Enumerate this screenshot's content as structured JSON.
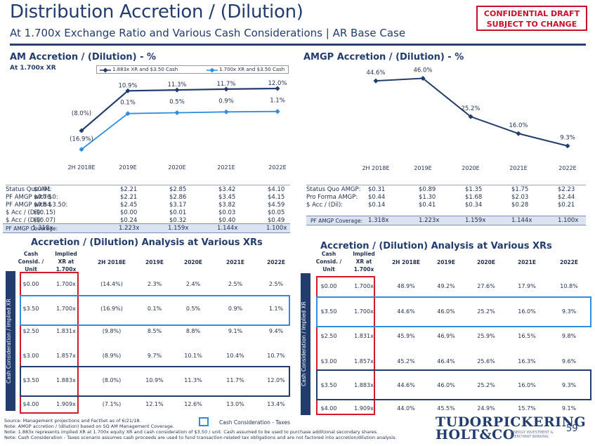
{
  "header": {
    "title": "Distribution Accretion / (Dilution)",
    "subtitle": "At 1.700x Exchange Ratio and Various Cash Considerations | AR Base Case",
    "confidential_line1": "CONFIDENTIAL DRAFT",
    "confidential_line2": "SUBJECT TO CHANGE"
  },
  "am_chart": {
    "title": "AM Accretion / (Dilution) - %",
    "subtitle": "At 1.700x XR",
    "legend": [
      "1.883x XR and $3.50 Cash",
      "1.700x XR and $3.50 Cash"
    ],
    "x_labels": [
      "2H 2018E",
      "2019E",
      "2020E",
      "2021E",
      "2022E"
    ],
    "series1_labels": [
      "(8.0%)",
      "10.9%",
      "11.3%",
      "11.7%",
      "12.0%"
    ],
    "series2_labels": [
      "(16.9%)",
      "0.1%",
      "0.5%",
      "0.9%",
      "1.1%"
    ]
  },
  "am_stats": {
    "labels": [
      "Status Quo AM:",
      "PF AMGP with $0:",
      "PF AMGP with $3.50:",
      "$ Acc / (Dil):",
      "$ Acc / (Dil):"
    ],
    "rows": [
      [
        "$0.91",
        "$2.21",
        "$2.85",
        "$3.42",
        "$4.10"
      ],
      [
        "$0.76",
        "$2.21",
        "$2.86",
        "$3.45",
        "$4.15"
      ],
      [
        "$0.84",
        "$2.45",
        "$3.17",
        "$3.82",
        "$4.59"
      ],
      [
        "($0.15)",
        "$0.00",
        "$0.01",
        "$0.03",
        "$0.05"
      ],
      [
        "($0.07)",
        "$0.24",
        "$0.32",
        "$0.40",
        "$0.49"
      ]
    ],
    "coverage_label": "PF AMGP Coverage:",
    "coverage": [
      "1.318x",
      "1.223x",
      "1.159x",
      "1.144x",
      "1.100x"
    ]
  },
  "amgp_chart": {
    "title": "AMGP Accretion / (Dilution) - %",
    "x_labels": [
      "2H 2018E",
      "2019E",
      "2020E",
      "2021E",
      "2022E"
    ],
    "labels": [
      "44.6%",
      "46.0%",
      "25.2%",
      "16.0%",
      "9.3%"
    ]
  },
  "amgp_stats": {
    "labels": [
      "Status Quo AMGP:",
      "Pro Forma AMGP:",
      "$ Acc / (Dil):"
    ],
    "rows": [
      [
        "$0.31",
        "$0.89",
        "$1.35",
        "$1.75",
        "$2.23"
      ],
      [
        "$0.44",
        "$1.30",
        "$1.68",
        "$2.03",
        "$2.44"
      ],
      [
        "$0.14",
        "$0.41",
        "$0.34",
        "$0.28",
        "$0.21"
      ]
    ],
    "coverage_label": "PF AMGP Coverage:",
    "coverage": [
      "1.318x",
      "1.223x",
      "1.159x",
      "1.144x",
      "1.100x"
    ]
  },
  "left_table": {
    "title": "Accretion / (Dilution) Analysis at Various XRs",
    "side_label": "Cash Consideration / Implied XR",
    "headers": [
      "Cash Consid. / Unit",
      "Implied XR at 1.700x",
      "2H 2018E",
      "2019E",
      "2020E",
      "2021E",
      "2022E"
    ],
    "rows": [
      [
        "$0.00",
        "1.700x",
        "(14.4%)",
        "2.3%",
        "2.4%",
        "2.5%",
        "2.5%"
      ],
      [
        "$3.50",
        "1.700x",
        "(16.9%)",
        "0.1%",
        "0.5%",
        "0.9%",
        "1.1%"
      ],
      [
        "$2.50",
        "1.831x",
        "(9.8%)",
        "8.5%",
        "8.8%",
        "9.1%",
        "9.4%"
      ],
      [
        "$3.00",
        "1.857x",
        "(8.9%)",
        "9.7%",
        "10.1%",
        "10.4%",
        "10.7%"
      ],
      [
        "$3.50",
        "1.883x",
        "(8.0%)",
        "10.9%",
        "11.3%",
        "11.7%",
        "12.0%"
      ],
      [
        "$4.00",
        "1.909x",
        "(7.1%)",
        "12.1%",
        "12.6%",
        "13.0%",
        "13.4%"
      ]
    ]
  },
  "right_table": {
    "title": "Accretion / (Dilution) Analysis at Various XRs",
    "side_label": "Cash Consideration / Implied XR",
    "headers": [
      "Cash Consid. / Unit",
      "Implied XR at 1.700x",
      "2H 2018E",
      "2019E",
      "2020E",
      "2021E",
      "2022E"
    ],
    "rows": [
      [
        "$0.00",
        "1.700x",
        "48.9%",
        "49.2%",
        "27.6%",
        "17.9%",
        "10.8%"
      ],
      [
        "$3.50",
        "1.700x",
        "44.6%",
        "46.0%",
        "25.2%",
        "16.0%",
        "9.3%"
      ],
      [
        "$2.50",
        "1.831x",
        "45.9%",
        "46.9%",
        "25.9%",
        "16.5%",
        "9.8%"
      ],
      [
        "$3.00",
        "1.857x",
        "45.2%",
        "46.4%",
        "25.6%",
        "16.3%",
        "9.6%"
      ],
      [
        "$3.50",
        "1.883x",
        "44.6%",
        "46.0%",
        "25.2%",
        "16.0%",
        "9.3%"
      ],
      [
        "$4.00",
        "1.909x",
        "44.0%",
        "45.5%",
        "24.9%",
        "15.7%",
        "9.1%"
      ]
    ]
  },
  "footer": {
    "legend_text": "Cash Consideration - Taxes",
    "notes": [
      "Source: Management projections and FactSet as of 6/21/18.",
      "Note: AMGP accretion / (dilution) based on SQ AM Management Coverage.",
      "Note: 1.883x represents implied XR at 1.700x equity XR and cash consideration of $3.50 / unit. Cash assumed to be used to purchase additional secondary shares.",
      "Note: Cash Consideration - Taxes scenario assumes cash proceeds are used to fund transaction-related tax obligations and are not factored into accretion/dilution analysis."
    ],
    "logo_line1": "TUDORPICKERING",
    "logo_line2": "HOLT&CO",
    "logo_sub1": "ENERGY INVESTMENT &",
    "logo_sub2": "MERCHANT BANKING",
    "page_number": "59"
  },
  "chart_data": [
    {
      "type": "line",
      "title": "AM Accretion / (Dilution) - %",
      "subtitle": "At 1.700x XR",
      "x": [
        "2H 2018E",
        "2019E",
        "2020E",
        "2021E",
        "2022E"
      ],
      "series": [
        {
          "name": "1.883x XR and $3.50 Cash",
          "values": [
            -8.0,
            10.9,
            11.3,
            11.7,
            12.0
          ],
          "color": "#223c6d"
        },
        {
          "name": "1.700x XR and $3.50 Cash",
          "values": [
            -16.9,
            0.1,
            0.5,
            0.9,
            1.1
          ],
          "color": "#2f8de0"
        }
      ],
      "ylim": [
        -18,
        14
      ],
      "grid": false,
      "legend": "top"
    },
    {
      "type": "line",
      "title": "AMGP Accretion / (Dilution) - %",
      "x": [
        "2H 2018E",
        "2019E",
        "2020E",
        "2021E",
        "2022E"
      ],
      "series": [
        {
          "values": [
            44.6,
            46.0,
            25.2,
            16.0,
            9.3
          ],
          "color": "#223c6d"
        }
      ],
      "ylim": [
        5,
        50
      ],
      "grid": false
    }
  ]
}
